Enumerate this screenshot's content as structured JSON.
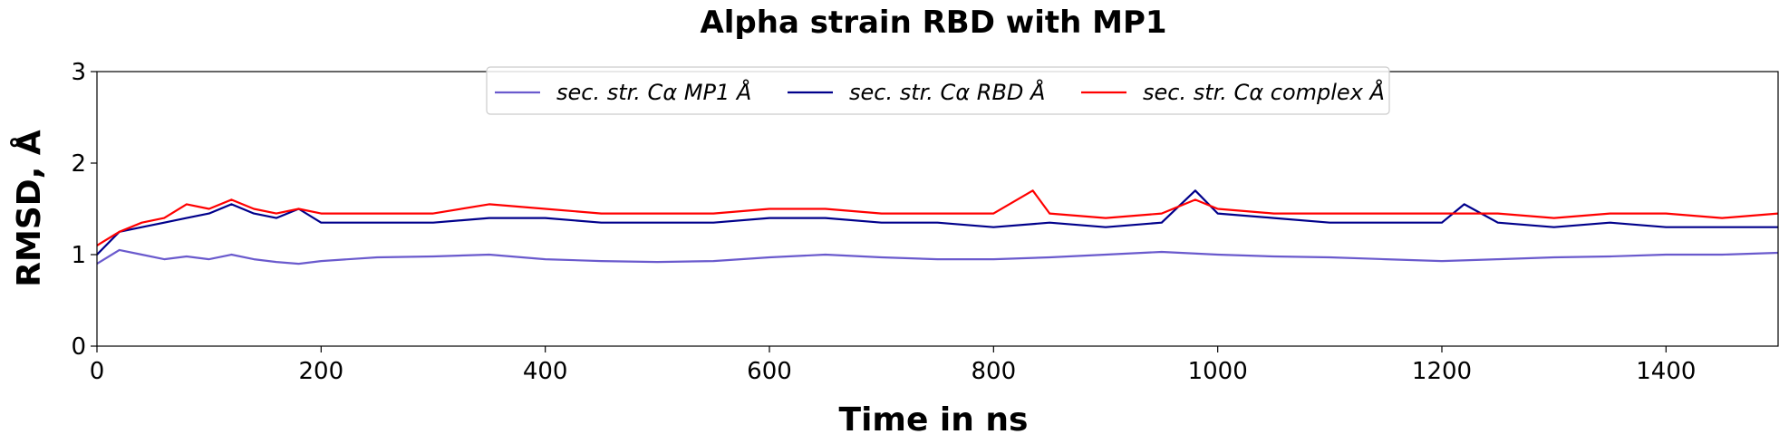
{
  "chart_data": {
    "type": "line",
    "title": "Alpha strain RBD with MP1",
    "xlabel": "Time in ns",
    "ylabel": "RMSD, Å",
    "xlim": [
      0,
      1500
    ],
    "ylim": [
      0,
      3
    ],
    "xticks": [
      0,
      200,
      400,
      600,
      800,
      1000,
      1200,
      1400
    ],
    "yticks": [
      0,
      1,
      2,
      3
    ],
    "grid": false,
    "legend_position": "top-center",
    "series": [
      {
        "name": "sec. str. Cα MP1 Å",
        "color": "#6a5acd",
        "x": [
          0,
          20,
          40,
          60,
          80,
          100,
          120,
          140,
          160,
          180,
          200,
          250,
          300,
          350,
          400,
          450,
          500,
          550,
          600,
          650,
          700,
          750,
          800,
          850,
          900,
          950,
          1000,
          1050,
          1100,
          1150,
          1200,
          1250,
          1300,
          1350,
          1400,
          1450,
          1500
        ],
        "y": [
          0.9,
          1.05,
          1.0,
          0.95,
          0.98,
          0.95,
          1.0,
          0.95,
          0.92,
          0.9,
          0.93,
          0.97,
          0.98,
          1.0,
          0.95,
          0.93,
          0.92,
          0.93,
          0.97,
          1.0,
          0.97,
          0.95,
          0.95,
          0.97,
          1.0,
          1.03,
          1.0,
          0.98,
          0.97,
          0.95,
          0.93,
          0.95,
          0.97,
          0.98,
          1.0,
          1.0,
          1.02
        ]
      },
      {
        "name": "sec. str. Cα RBD Å",
        "color": "#00008b",
        "x": [
          0,
          20,
          40,
          60,
          80,
          100,
          120,
          140,
          160,
          180,
          200,
          250,
          300,
          350,
          400,
          450,
          500,
          550,
          600,
          650,
          700,
          750,
          800,
          850,
          900,
          950,
          980,
          1000,
          1050,
          1100,
          1150,
          1200,
          1220,
          1250,
          1300,
          1350,
          1400,
          1450,
          1500
        ],
        "y": [
          1.0,
          1.25,
          1.3,
          1.35,
          1.4,
          1.45,
          1.55,
          1.45,
          1.4,
          1.5,
          1.35,
          1.35,
          1.35,
          1.4,
          1.4,
          1.35,
          1.35,
          1.35,
          1.4,
          1.4,
          1.35,
          1.35,
          1.3,
          1.35,
          1.3,
          1.35,
          1.7,
          1.45,
          1.4,
          1.35,
          1.35,
          1.35,
          1.55,
          1.35,
          1.3,
          1.35,
          1.3,
          1.3,
          1.3
        ]
      },
      {
        "name": "sec. str. Cα complex Å",
        "color": "#ff0000",
        "x": [
          0,
          20,
          40,
          60,
          80,
          100,
          120,
          140,
          160,
          180,
          200,
          250,
          300,
          350,
          400,
          450,
          500,
          550,
          600,
          650,
          700,
          750,
          800,
          835,
          850,
          900,
          950,
          980,
          1000,
          1050,
          1100,
          1150,
          1200,
          1250,
          1300,
          1350,
          1400,
          1450,
          1500
        ],
        "y": [
          1.1,
          1.25,
          1.35,
          1.4,
          1.55,
          1.5,
          1.6,
          1.5,
          1.45,
          1.5,
          1.45,
          1.45,
          1.45,
          1.55,
          1.5,
          1.45,
          1.45,
          1.45,
          1.5,
          1.5,
          1.45,
          1.45,
          1.45,
          1.7,
          1.45,
          1.4,
          1.45,
          1.6,
          1.5,
          1.45,
          1.45,
          1.45,
          1.45,
          1.45,
          1.4,
          1.45,
          1.45,
          1.4,
          1.45
        ]
      }
    ]
  }
}
